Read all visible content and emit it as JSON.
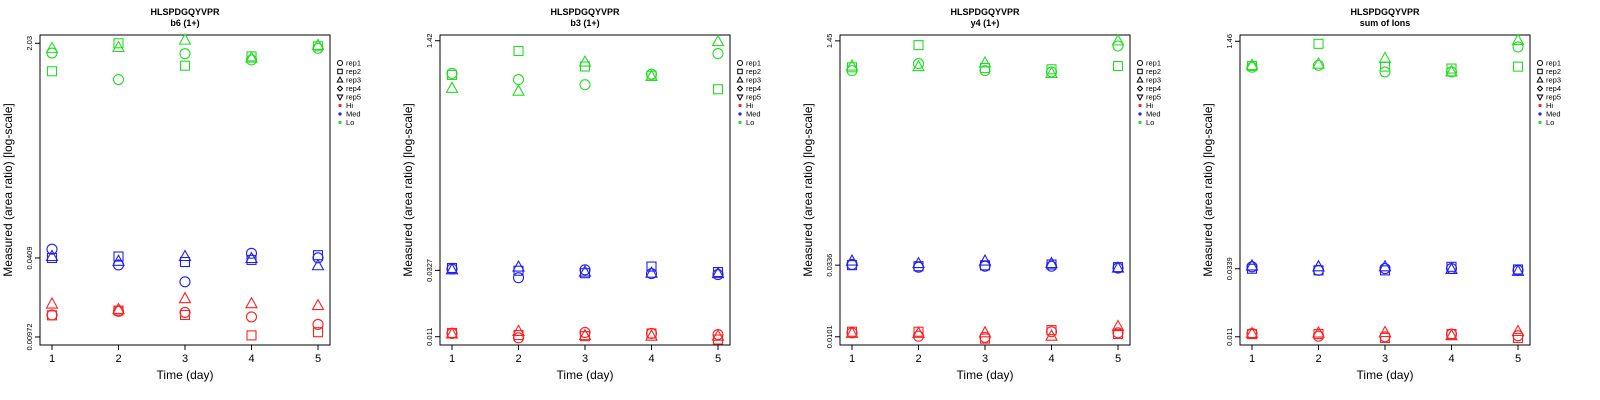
{
  "colors": {
    "Hi": "#ff2020",
    "Med": "#2020ee",
    "Lo": "#22dd22",
    "axis": "#000000"
  },
  "chart_data": [
    {
      "type": "scatter",
      "title": "HLSPDGQYVPR",
      "subtitle": "b6 (1+)",
      "xlabel": "Time (day)",
      "ylabel": "Measured (area ratio) [log-scale]",
      "x_ticks": [
        "1",
        "2",
        "3",
        "4",
        "5"
      ],
      "y_ticks": [
        "0.00972",
        "0.0409",
        "2.03"
      ],
      "ylim": [
        0.0084,
        2.36
      ],
      "y_scale": "log",
      "legend": [
        {
          "label": "rep1",
          "marker": "circle"
        },
        {
          "label": "rep2",
          "marker": "square"
        },
        {
          "label": "rep3",
          "marker": "triangle-up"
        },
        {
          "label": "rep4",
          "marker": "diamond"
        },
        {
          "label": "rep5",
          "marker": "triangle-down"
        },
        {
          "label": "Hi",
          "marker": "dot",
          "color": "Hi"
        },
        {
          "label": "Med",
          "marker": "dot",
          "color": "Med"
        },
        {
          "label": "Lo",
          "marker": "dot",
          "color": "Lo"
        }
      ],
      "series": [
        {
          "level": "Hi",
          "rep": "rep1",
          "x": [
            1,
            2,
            3,
            4,
            5
          ],
          "y": [
            0.0145,
            0.0155,
            0.0152,
            0.014,
            0.0122
          ]
        },
        {
          "level": "Hi",
          "rep": "rep2",
          "x": [
            1,
            2,
            3,
            4,
            5
          ],
          "y": [
            0.0144,
            0.0157,
            0.0145,
            0.01,
            0.0106
          ]
        },
        {
          "level": "Hi",
          "rep": "rep3",
          "x": [
            1,
            2,
            3,
            4,
            5
          ],
          "y": [
            0.0177,
            0.016,
            0.0195,
            0.0178,
            0.0172
          ]
        },
        {
          "level": "Med",
          "rep": "rep1",
          "x": [
            1,
            2,
            3,
            4,
            5
          ],
          "y": [
            0.048,
            0.036,
            0.0265,
            0.0445,
            0.041
          ]
        },
        {
          "level": "Med",
          "rep": "rep2",
          "x": [
            1,
            2,
            3,
            4,
            5
          ],
          "y": [
            0.0409,
            0.042,
            0.038,
            0.0395,
            0.043
          ]
        },
        {
          "level": "Med",
          "rep": "rep3",
          "x": [
            1,
            2,
            3,
            4,
            5
          ],
          "y": [
            0.042,
            0.0385,
            0.042,
            0.0405,
            0.0355
          ]
        },
        {
          "level": "Lo",
          "rep": "rep1",
          "x": [
            1,
            2,
            3,
            4,
            5
          ],
          "y": [
            1.7,
            1.05,
            1.68,
            1.5,
            1.85
          ]
        },
        {
          "level": "Lo",
          "rep": "rep2",
          "x": [
            1,
            2,
            3,
            4,
            5
          ],
          "y": [
            1.22,
            2.03,
            1.35,
            1.6,
            1.92
          ]
        },
        {
          "level": "Lo",
          "rep": "rep3",
          "x": [
            1,
            2,
            3,
            4,
            5
          ],
          "y": [
            1.85,
            1.88,
            2.15,
            1.55,
            1.95
          ]
        }
      ]
    },
    {
      "type": "scatter",
      "title": "HLSPDGQYVPR",
      "subtitle": "b3 (1+)",
      "xlabel": "Time (day)",
      "ylabel": "Measured (area ratio) [log-scale]",
      "x_ticks": [
        "1",
        "2",
        "3",
        "4",
        "5"
      ],
      "y_ticks": [
        "0.011",
        "0.0327",
        "1.42"
      ],
      "ylim": [
        0.0096,
        1.56
      ],
      "y_scale": "log",
      "legend": [
        {
          "label": "rep1",
          "marker": "circle"
        },
        {
          "label": "rep2",
          "marker": "square"
        },
        {
          "label": "rep3",
          "marker": "triangle-up"
        },
        {
          "label": "rep4",
          "marker": "diamond"
        },
        {
          "label": "rep5",
          "marker": "triangle-down"
        },
        {
          "label": "Hi",
          "marker": "dot",
          "color": "Hi"
        },
        {
          "label": "Med",
          "marker": "dot",
          "color": "Med"
        },
        {
          "label": "Lo",
          "marker": "dot",
          "color": "Lo"
        }
      ],
      "series": [
        {
          "level": "Hi",
          "rep": "rep1",
          "x": [
            1,
            2,
            3,
            4,
            5
          ],
          "y": [
            0.0116,
            0.0108,
            0.0118,
            0.0116,
            0.0114
          ]
        },
        {
          "level": "Hi",
          "rep": "rep2",
          "x": [
            1,
            2,
            3,
            4,
            5
          ],
          "y": [
            0.0117,
            0.0113,
            0.0111,
            0.0116,
            0.0105
          ]
        },
        {
          "level": "Hi",
          "rep": "rep3",
          "x": [
            1,
            2,
            3,
            4,
            5
          ],
          "y": [
            0.0115,
            0.012,
            0.0112,
            0.0111,
            0.0111
          ]
        },
        {
          "level": "Med",
          "rep": "rep1",
          "x": [
            1,
            2,
            3,
            4,
            5
          ],
          "y": [
            0.0335,
            0.029,
            0.033,
            0.031,
            0.0305
          ]
        },
        {
          "level": "Med",
          "rep": "rep2",
          "x": [
            1,
            2,
            3,
            4,
            5
          ],
          "y": [
            0.034,
            0.0325,
            0.0312,
            0.0348,
            0.0318
          ]
        },
        {
          "level": "Med",
          "rep": "rep3",
          "x": [
            1,
            2,
            3,
            4,
            5
          ],
          "y": [
            0.033,
            0.0345,
            0.0318,
            0.0312,
            0.031
          ]
        },
        {
          "level": "Lo",
          "rep": "rep1",
          "x": [
            1,
            2,
            3,
            4,
            5
          ],
          "y": [
            0.83,
            0.75,
            0.69,
            0.82,
            1.15
          ]
        },
        {
          "level": "Lo",
          "rep": "rep2",
          "x": [
            1,
            2,
            3,
            4,
            5
          ],
          "y": [
            0.81,
            1.2,
            0.93,
            0.8,
            0.64
          ]
        },
        {
          "level": "Lo",
          "rep": "rep3",
          "x": [
            1,
            2,
            3,
            4,
            5
          ],
          "y": [
            0.65,
            0.62,
            1.0,
            0.79,
            1.4
          ]
        }
      ]
    },
    {
      "type": "scatter",
      "title": "HLSPDGQYVPR",
      "subtitle": "y4 (1+)",
      "xlabel": "Time (day)",
      "ylabel": "Measured (area ratio) [log-scale]",
      "x_ticks": [
        "1",
        "2",
        "3",
        "4",
        "5"
      ],
      "y_ticks": [
        "0.0101",
        "0.0336",
        "1.45"
      ],
      "ylim": [
        0.0088,
        1.6
      ],
      "y_scale": "log",
      "legend": [
        {
          "label": "rep1",
          "marker": "circle"
        },
        {
          "label": "rep2",
          "marker": "square"
        },
        {
          "label": "rep3",
          "marker": "triangle-up"
        },
        {
          "label": "rep4",
          "marker": "diamond"
        },
        {
          "label": "rep5",
          "marker": "triangle-down"
        },
        {
          "label": "Hi",
          "marker": "dot",
          "color": "Hi"
        },
        {
          "label": "Med",
          "marker": "dot",
          "color": "Med"
        },
        {
          "label": "Lo",
          "marker": "dot",
          "color": "Lo"
        }
      ],
      "series": [
        {
          "level": "Hi",
          "rep": "rep1",
          "x": [
            1,
            2,
            3,
            4,
            5
          ],
          "y": [
            0.0108,
            0.0102,
            0.01,
            0.011,
            0.0108
          ]
        },
        {
          "level": "Hi",
          "rep": "rep2",
          "x": [
            1,
            2,
            3,
            4,
            5
          ],
          "y": [
            0.011,
            0.011,
            0.0098,
            0.0113,
            0.0106
          ]
        },
        {
          "level": "Hi",
          "rep": "rep3",
          "x": [
            1,
            2,
            3,
            4,
            5
          ],
          "y": [
            0.0107,
            0.0107,
            0.0108,
            0.0102,
            0.012
          ]
        },
        {
          "level": "Med",
          "rep": "rep1",
          "x": [
            1,
            2,
            3,
            4,
            5
          ],
          "y": [
            0.034,
            0.0325,
            0.033,
            0.033,
            0.032
          ]
        },
        {
          "level": "Med",
          "rep": "rep2",
          "x": [
            1,
            2,
            3,
            4,
            5
          ],
          "y": [
            0.0336,
            0.033,
            0.0335,
            0.034,
            0.0325
          ]
        },
        {
          "level": "Med",
          "rep": "rep3",
          "x": [
            1,
            2,
            3,
            4,
            5
          ],
          "y": [
            0.036,
            0.0345,
            0.036,
            0.0345,
            0.032
          ]
        },
        {
          "level": "Lo",
          "rep": "rep1",
          "x": [
            1,
            2,
            3,
            4,
            5
          ],
          "y": [
            0.88,
            0.99,
            0.88,
            0.86,
            1.33
          ]
        },
        {
          "level": "Lo",
          "rep": "rep2",
          "x": [
            1,
            2,
            3,
            4,
            5
          ],
          "y": [
            0.93,
            1.35,
            0.92,
            0.9,
            0.95
          ]
        },
        {
          "level": "Lo",
          "rep": "rep3",
          "x": [
            1,
            2,
            3,
            4,
            5
          ],
          "y": [
            0.95,
            0.94,
            1.0,
            0.84,
            1.45
          ]
        }
      ]
    },
    {
      "type": "scatter",
      "title": "HLSPDGQYVPR",
      "subtitle": "sum of Ions",
      "xlabel": "Time (day)",
      "ylabel": "Measured (area ratio) [log-scale]",
      "x_ticks": [
        "1",
        "2",
        "3",
        "4",
        "5"
      ],
      "y_ticks": [
        "0.011",
        "0.0339",
        "1.46"
      ],
      "ylim": [
        0.0096,
        1.62
      ],
      "y_scale": "log",
      "legend": [
        {
          "label": "rep1",
          "marker": "circle"
        },
        {
          "label": "rep2",
          "marker": "square"
        },
        {
          "label": "rep3",
          "marker": "triangle-up"
        },
        {
          "label": "rep4",
          "marker": "diamond"
        },
        {
          "label": "rep5",
          "marker": "triangle-down"
        },
        {
          "label": "Hi",
          "marker": "dot",
          "color": "Hi"
        },
        {
          "label": "Med",
          "marker": "dot",
          "color": "Med"
        },
        {
          "label": "Lo",
          "marker": "dot",
          "color": "Lo"
        }
      ],
      "series": [
        {
          "level": "Hi",
          "rep": "rep1",
          "x": [
            1,
            2,
            3,
            4,
            5
          ],
          "y": [
            0.0116,
            0.0111,
            0.011,
            0.0115,
            0.0112
          ]
        },
        {
          "level": "Hi",
          "rep": "rep2",
          "x": [
            1,
            2,
            3,
            4,
            5
          ],
          "y": [
            0.0115,
            0.0115,
            0.0108,
            0.0115,
            0.0108
          ]
        },
        {
          "level": "Hi",
          "rep": "rep3",
          "x": [
            1,
            2,
            3,
            4,
            5
          ],
          "y": [
            0.0116,
            0.0117,
            0.0118,
            0.0112,
            0.012
          ]
        },
        {
          "level": "Med",
          "rep": "rep1",
          "x": [
            1,
            2,
            3,
            4,
            5
          ],
          "y": [
            0.035,
            0.033,
            0.034,
            0.034,
            0.033
          ]
        },
        {
          "level": "Med",
          "rep": "rep2",
          "x": [
            1,
            2,
            3,
            4,
            5
          ],
          "y": [
            0.0339,
            0.033,
            0.033,
            0.035,
            0.0335
          ]
        },
        {
          "level": "Med",
          "rep": "rep3",
          "x": [
            1,
            2,
            3,
            4,
            5
          ],
          "y": [
            0.0355,
            0.035,
            0.035,
            0.0335,
            0.0325
          ]
        },
        {
          "level": "Lo",
          "rep": "rep1",
          "x": [
            1,
            2,
            3,
            4,
            5
          ],
          "y": [
            0.95,
            0.98,
            0.88,
            0.88,
            1.33
          ]
        },
        {
          "level": "Lo",
          "rep": "rep2",
          "x": [
            1,
            2,
            3,
            4,
            5
          ],
          "y": [
            0.97,
            1.4,
            0.96,
            0.93,
            0.96
          ]
        },
        {
          "level": "Lo",
          "rep": "rep3",
          "x": [
            1,
            2,
            3,
            4,
            5
          ],
          "y": [
            0.98,
            1.0,
            1.1,
            0.88,
            1.48
          ]
        }
      ]
    }
  ]
}
